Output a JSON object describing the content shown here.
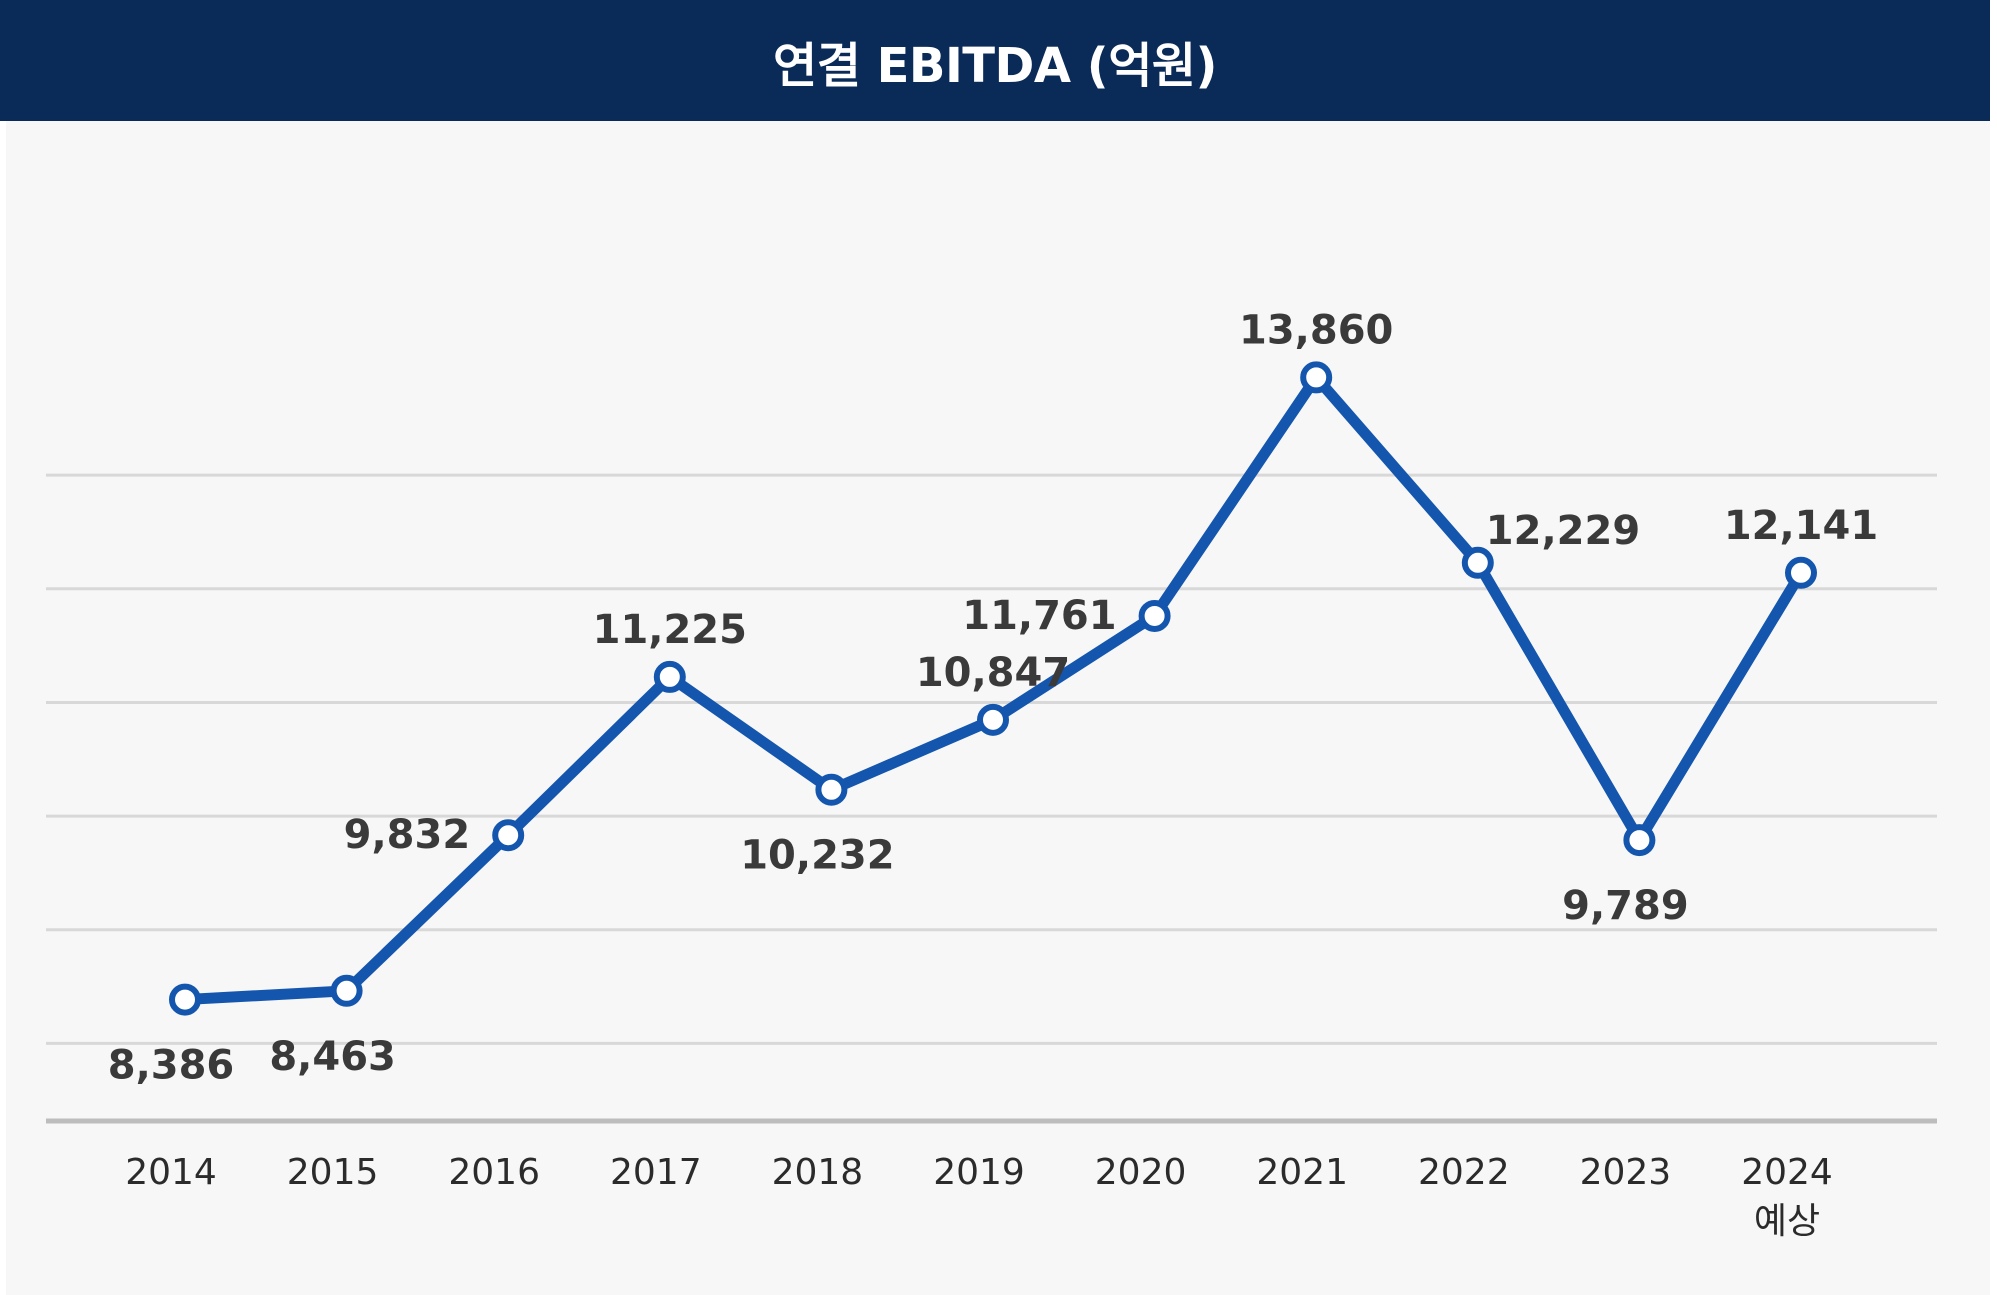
{
  "title": "연결 EBITDA (억원)",
  "colors": {
    "header_bg": "#0a2b58",
    "line": "#1456ad",
    "plot_bg": "#f7f7f7",
    "grid": "#d8d8d8"
  },
  "chart_data": {
    "type": "line",
    "title": "연결 EBITDA (억원)",
    "xlabel": "",
    "ylabel": "",
    "categories": [
      "2014",
      "2015",
      "2016",
      "2017",
      "2018",
      "2019",
      "2020",
      "2021",
      "2022",
      "2023",
      "2024"
    ],
    "category_sublabels": [
      "",
      "",
      "",
      "",
      "",
      "",
      "",
      "",
      "",
      "",
      "예상"
    ],
    "series": [
      {
        "values": [
          8386,
          8463,
          9832,
          11225,
          10232,
          10847,
          11761,
          13860,
          12229,
          9789,
          12141
        ],
        "labels": [
          "8,386",
          "8,463",
          "9,832",
          "11,225",
          "10,232",
          "10,847",
          "11,761",
          "13,860",
          "12,229",
          "9,789",
          "12,141"
        ]
      }
    ],
    "label_positions": [
      "below",
      "below",
      "left",
      "above",
      "below",
      "above",
      "left",
      "above",
      "right",
      "below",
      "above"
    ],
    "ylim": [
      7300,
      14400
    ],
    "y_gridlines": [
      8000,
      9000,
      10000,
      11000,
      12000,
      13000
    ],
    "y_tick_labels_visible": false,
    "grid": true,
    "legend": "none"
  }
}
